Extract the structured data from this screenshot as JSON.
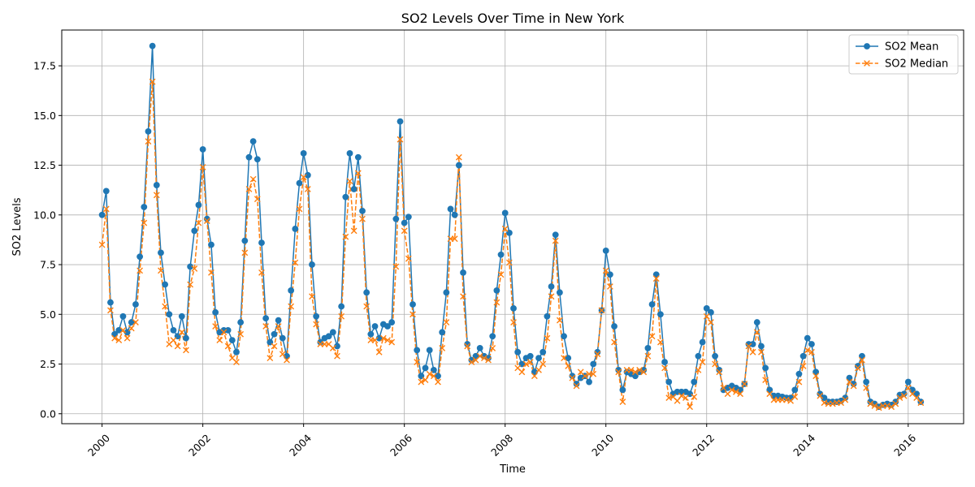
{
  "chart_data": {
    "type": "line",
    "title": "SO2 Levels Over Time in New York",
    "xlabel": "Time",
    "ylabel": "SO2 Levels",
    "xlim": [
      1999.2,
      2017.1
    ],
    "ylim": [
      -0.5,
      19.3
    ],
    "x_ticks": [
      2000,
      2002,
      2004,
      2006,
      2008,
      2010,
      2012,
      2014,
      2016
    ],
    "x_tick_labels": [
      "2000",
      "2002",
      "2004",
      "2006",
      "2008",
      "2010",
      "2012",
      "2014",
      "2016"
    ],
    "y_ticks": [
      0,
      2.5,
      5,
      7.5,
      10,
      12.5,
      15,
      17.5
    ],
    "y_tick_labels": [
      "0.0",
      "2.5",
      "5.0",
      "7.5",
      "10.0",
      "12.5",
      "15.0",
      "17.5"
    ],
    "grid": true,
    "legend_position": "top-right",
    "x_start_year": 2000,
    "series": [
      {
        "name": "SO2 Mean",
        "color": "#1f77b4",
        "line": "solid",
        "marker": "circle",
        "values": [
          10.0,
          11.2,
          5.6,
          4.0,
          4.2,
          4.9,
          4.1,
          4.6,
          5.5,
          7.9,
          10.4,
          14.2,
          18.5,
          11.5,
          8.1,
          6.5,
          5.0,
          4.2,
          3.9,
          4.9,
          3.8,
          7.4,
          9.2,
          10.5,
          13.3,
          9.8,
          8.5,
          5.1,
          4.1,
          4.2,
          4.2,
          3.7,
          3.1,
          4.6,
          8.7,
          12.9,
          13.7,
          12.8,
          8.6,
          4.8,
          3.6,
          4.0,
          4.7,
          3.8,
          2.9,
          6.2,
          9.3,
          11.6,
          13.1,
          12.0,
          7.5,
          4.9,
          3.6,
          3.8,
          3.9,
          4.1,
          3.4,
          5.4,
          10.9,
          13.1,
          11.3,
          12.9,
          10.2,
          6.1,
          4.0,
          4.4,
          3.8,
          4.5,
          4.4,
          4.6,
          9.8,
          14.7,
          9.6,
          9.9,
          5.5,
          3.2,
          1.9,
          2.3,
          3.2,
          2.2,
          1.9,
          4.1,
          6.1,
          10.3,
          10.0,
          12.5,
          7.1,
          3.5,
          2.7,
          2.9,
          3.3,
          2.9,
          2.8,
          3.9,
          6.2,
          8.0,
          10.1,
          9.1,
          5.3,
          3.1,
          2.5,
          2.8,
          2.9,
          2.1,
          2.8,
          3.1,
          4.9,
          6.4,
          9.0,
          6.1,
          3.9,
          2.8,
          1.9,
          1.5,
          1.8,
          1.9,
          1.6,
          2.5,
          3.1,
          5.2,
          8.2,
          7.0,
          4.4,
          2.2,
          1.2,
          2.1,
          2.0,
          1.9,
          2.1,
          2.2,
          3.3,
          5.5,
          7.0,
          5.0,
          2.6,
          1.6,
          1.0,
          1.1,
          1.1,
          1.1,
          1.0,
          1.6,
          2.9,
          3.6,
          5.3,
          5.1,
          2.9,
          2.2,
          1.2,
          1.3,
          1.4,
          1.3,
          1.2,
          1.5,
          3.5,
          3.5,
          4.6,
          3.4,
          2.3,
          1.2,
          0.9,
          0.9,
          0.85,
          0.8,
          0.8,
          1.2,
          2.0,
          2.9,
          3.8,
          3.5,
          2.1,
          1.0,
          0.8,
          0.6,
          0.6,
          0.6,
          0.65,
          0.8,
          1.8,
          1.5,
          2.4,
          2.9,
          1.6,
          0.6,
          0.5,
          0.35,
          0.45,
          0.5,
          0.45,
          0.6,
          0.95,
          1.0,
          1.6,
          1.2,
          1.0,
          0.6
        ]
      },
      {
        "name": "SO2 Median",
        "color": "#ff7f0e",
        "line": "dashed",
        "marker": "x",
        "values": [
          8.5,
          10.3,
          5.2,
          3.8,
          3.7,
          4.2,
          3.8,
          4.3,
          4.6,
          7.2,
          9.6,
          13.7,
          16.7,
          11.0,
          7.2,
          5.4,
          3.5,
          3.7,
          3.4,
          4.1,
          3.2,
          6.5,
          7.3,
          9.6,
          12.4,
          9.7,
          7.1,
          4.4,
          3.7,
          4.1,
          3.4,
          2.8,
          2.6,
          4.0,
          8.1,
          11.3,
          11.8,
          10.8,
          7.1,
          4.4,
          2.8,
          3.4,
          4.4,
          3.0,
          2.7,
          5.4,
          7.6,
          10.3,
          11.9,
          11.3,
          5.9,
          4.5,
          3.5,
          3.5,
          3.5,
          3.3,
          2.9,
          4.9,
          8.9,
          11.7,
          9.2,
          12.1,
          9.8,
          5.4,
          3.7,
          3.7,
          3.1,
          3.8,
          3.7,
          3.6,
          7.4,
          13.8,
          9.2,
          7.8,
          5.0,
          2.6,
          1.6,
          1.7,
          2.0,
          1.9,
          1.6,
          3.3,
          4.6,
          8.8,
          8.8,
          12.9,
          5.9,
          3.4,
          2.6,
          2.7,
          2.9,
          2.8,
          2.7,
          3.3,
          5.6,
          7.0,
          9.3,
          7.6,
          4.6,
          2.3,
          2.1,
          2.5,
          2.6,
          1.9,
          2.2,
          2.5,
          3.8,
          5.9,
          8.7,
          4.7,
          2.8,
          2.4,
          1.8,
          1.4,
          2.1,
          1.9,
          2.0,
          2.0,
          3.0,
          5.2,
          7.2,
          6.4,
          3.6,
          2.1,
          0.6,
          2.2,
          2.2,
          2.1,
          2.2,
          2.1,
          2.9,
          3.9,
          6.8,
          3.6,
          2.3,
          0.8,
          0.85,
          0.65,
          0.9,
          0.8,
          0.35,
          0.85,
          2.2,
          2.6,
          4.9,
          4.6,
          2.5,
          2.1,
          1.3,
          1.0,
          1.2,
          1.1,
          1.0,
          1.5,
          3.4,
          3.1,
          4.1,
          3.1,
          1.7,
          1.0,
          0.7,
          0.7,
          0.7,
          0.7,
          0.65,
          0.85,
          1.6,
          2.4,
          3.2,
          3.1,
          1.9,
          0.9,
          0.55,
          0.5,
          0.5,
          0.55,
          0.55,
          0.7,
          1.6,
          1.4,
          2.3,
          2.7,
          1.3,
          0.5,
          0.4,
          0.3,
          0.4,
          0.4,
          0.35,
          0.5,
          0.8,
          0.9,
          1.3,
          1.0,
          0.8,
          0.55
        ]
      }
    ]
  }
}
